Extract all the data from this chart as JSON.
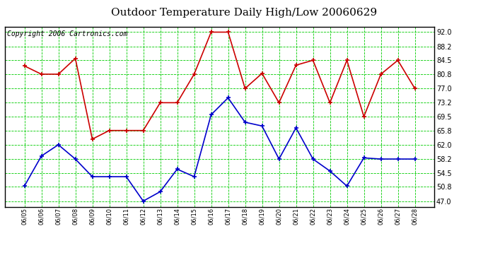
{
  "title": "Outdoor Temperature Daily High/Low 20060629",
  "copyright": "Copyright 2006 Cartronics.com",
  "dates": [
    "06/05",
    "06/06",
    "06/07",
    "06/08",
    "06/09",
    "06/10",
    "06/11",
    "06/12",
    "06/13",
    "06/14",
    "06/15",
    "06/16",
    "06/17",
    "06/18",
    "06/19",
    "06/20",
    "06/21",
    "06/22",
    "06/23",
    "06/24",
    "06/25",
    "06/26",
    "06/27",
    "06/28"
  ],
  "high": [
    83.0,
    80.8,
    80.8,
    85.0,
    63.5,
    65.8,
    65.8,
    65.8,
    73.2,
    73.2,
    80.8,
    92.0,
    92.0,
    77.0,
    81.0,
    73.2,
    83.2,
    84.5,
    73.2,
    84.5,
    69.5,
    80.8,
    84.5,
    77.0
  ],
  "low": [
    51.0,
    59.0,
    62.0,
    58.2,
    53.5,
    53.5,
    53.5,
    47.0,
    49.5,
    55.5,
    53.5,
    70.0,
    74.5,
    68.0,
    67.0,
    58.2,
    66.5,
    58.2,
    55.0,
    51.0,
    58.5,
    58.2,
    58.2,
    58.2
  ],
  "y_ticks": [
    47.0,
    50.8,
    54.5,
    58.2,
    62.0,
    65.8,
    69.5,
    73.2,
    77.0,
    80.8,
    84.5,
    88.2,
    92.0
  ],
  "ylim": [
    45.5,
    93.5
  ],
  "high_color": "#cc0000",
  "low_color": "#0000cc",
  "grid_color": "#00cc00",
  "bg_color": "#ffffff",
  "plot_bg_color": "#ffffff",
  "title_fontsize": 11,
  "copyright_fontsize": 7,
  "tick_fontsize": 7,
  "xlabel_fontsize": 6
}
